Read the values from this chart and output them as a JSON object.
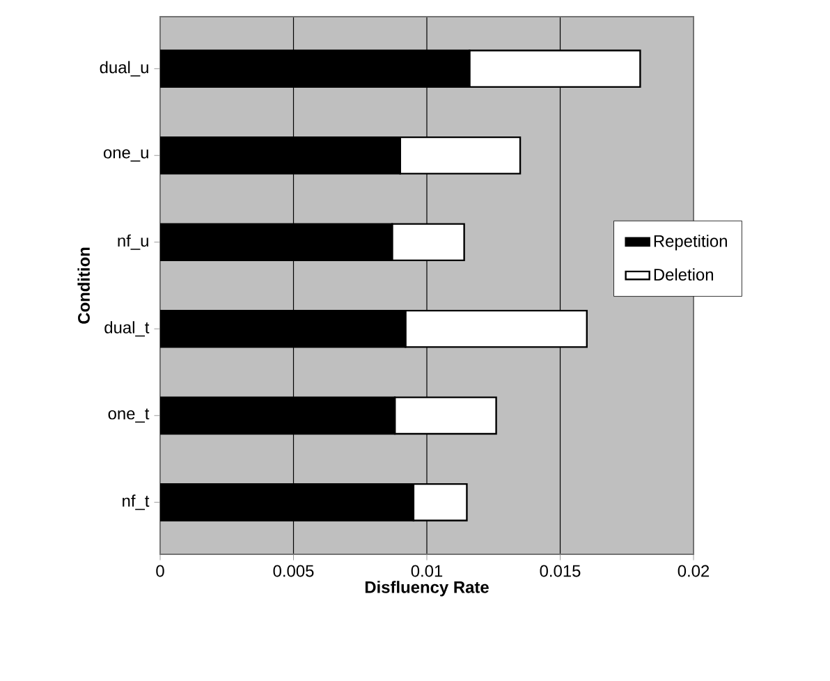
{
  "chart_data": {
    "type": "bar",
    "orientation": "horizontal",
    "stacked": true,
    "xlabel": "Disfluency Rate",
    "ylabel": "Condition",
    "categories": [
      "dual_u",
      "one_u",
      "nf_u",
      "dual_t",
      "one_t",
      "nf_t"
    ],
    "series": [
      {
        "name": "Repetition",
        "color": "#000000",
        "values": [
          0.0116,
          0.009,
          0.0087,
          0.0092,
          0.0088,
          0.0095
        ]
      },
      {
        "name": "Deletion",
        "color": "#ffffff",
        "values": [
          0.0064,
          0.0045,
          0.0027,
          0.0068,
          0.0038,
          0.002
        ]
      }
    ],
    "xlim": [
      0,
      0.02
    ],
    "xticks": [
      0,
      0.005,
      0.01,
      0.015,
      0.02
    ],
    "grid": "x",
    "legend": "right"
  }
}
